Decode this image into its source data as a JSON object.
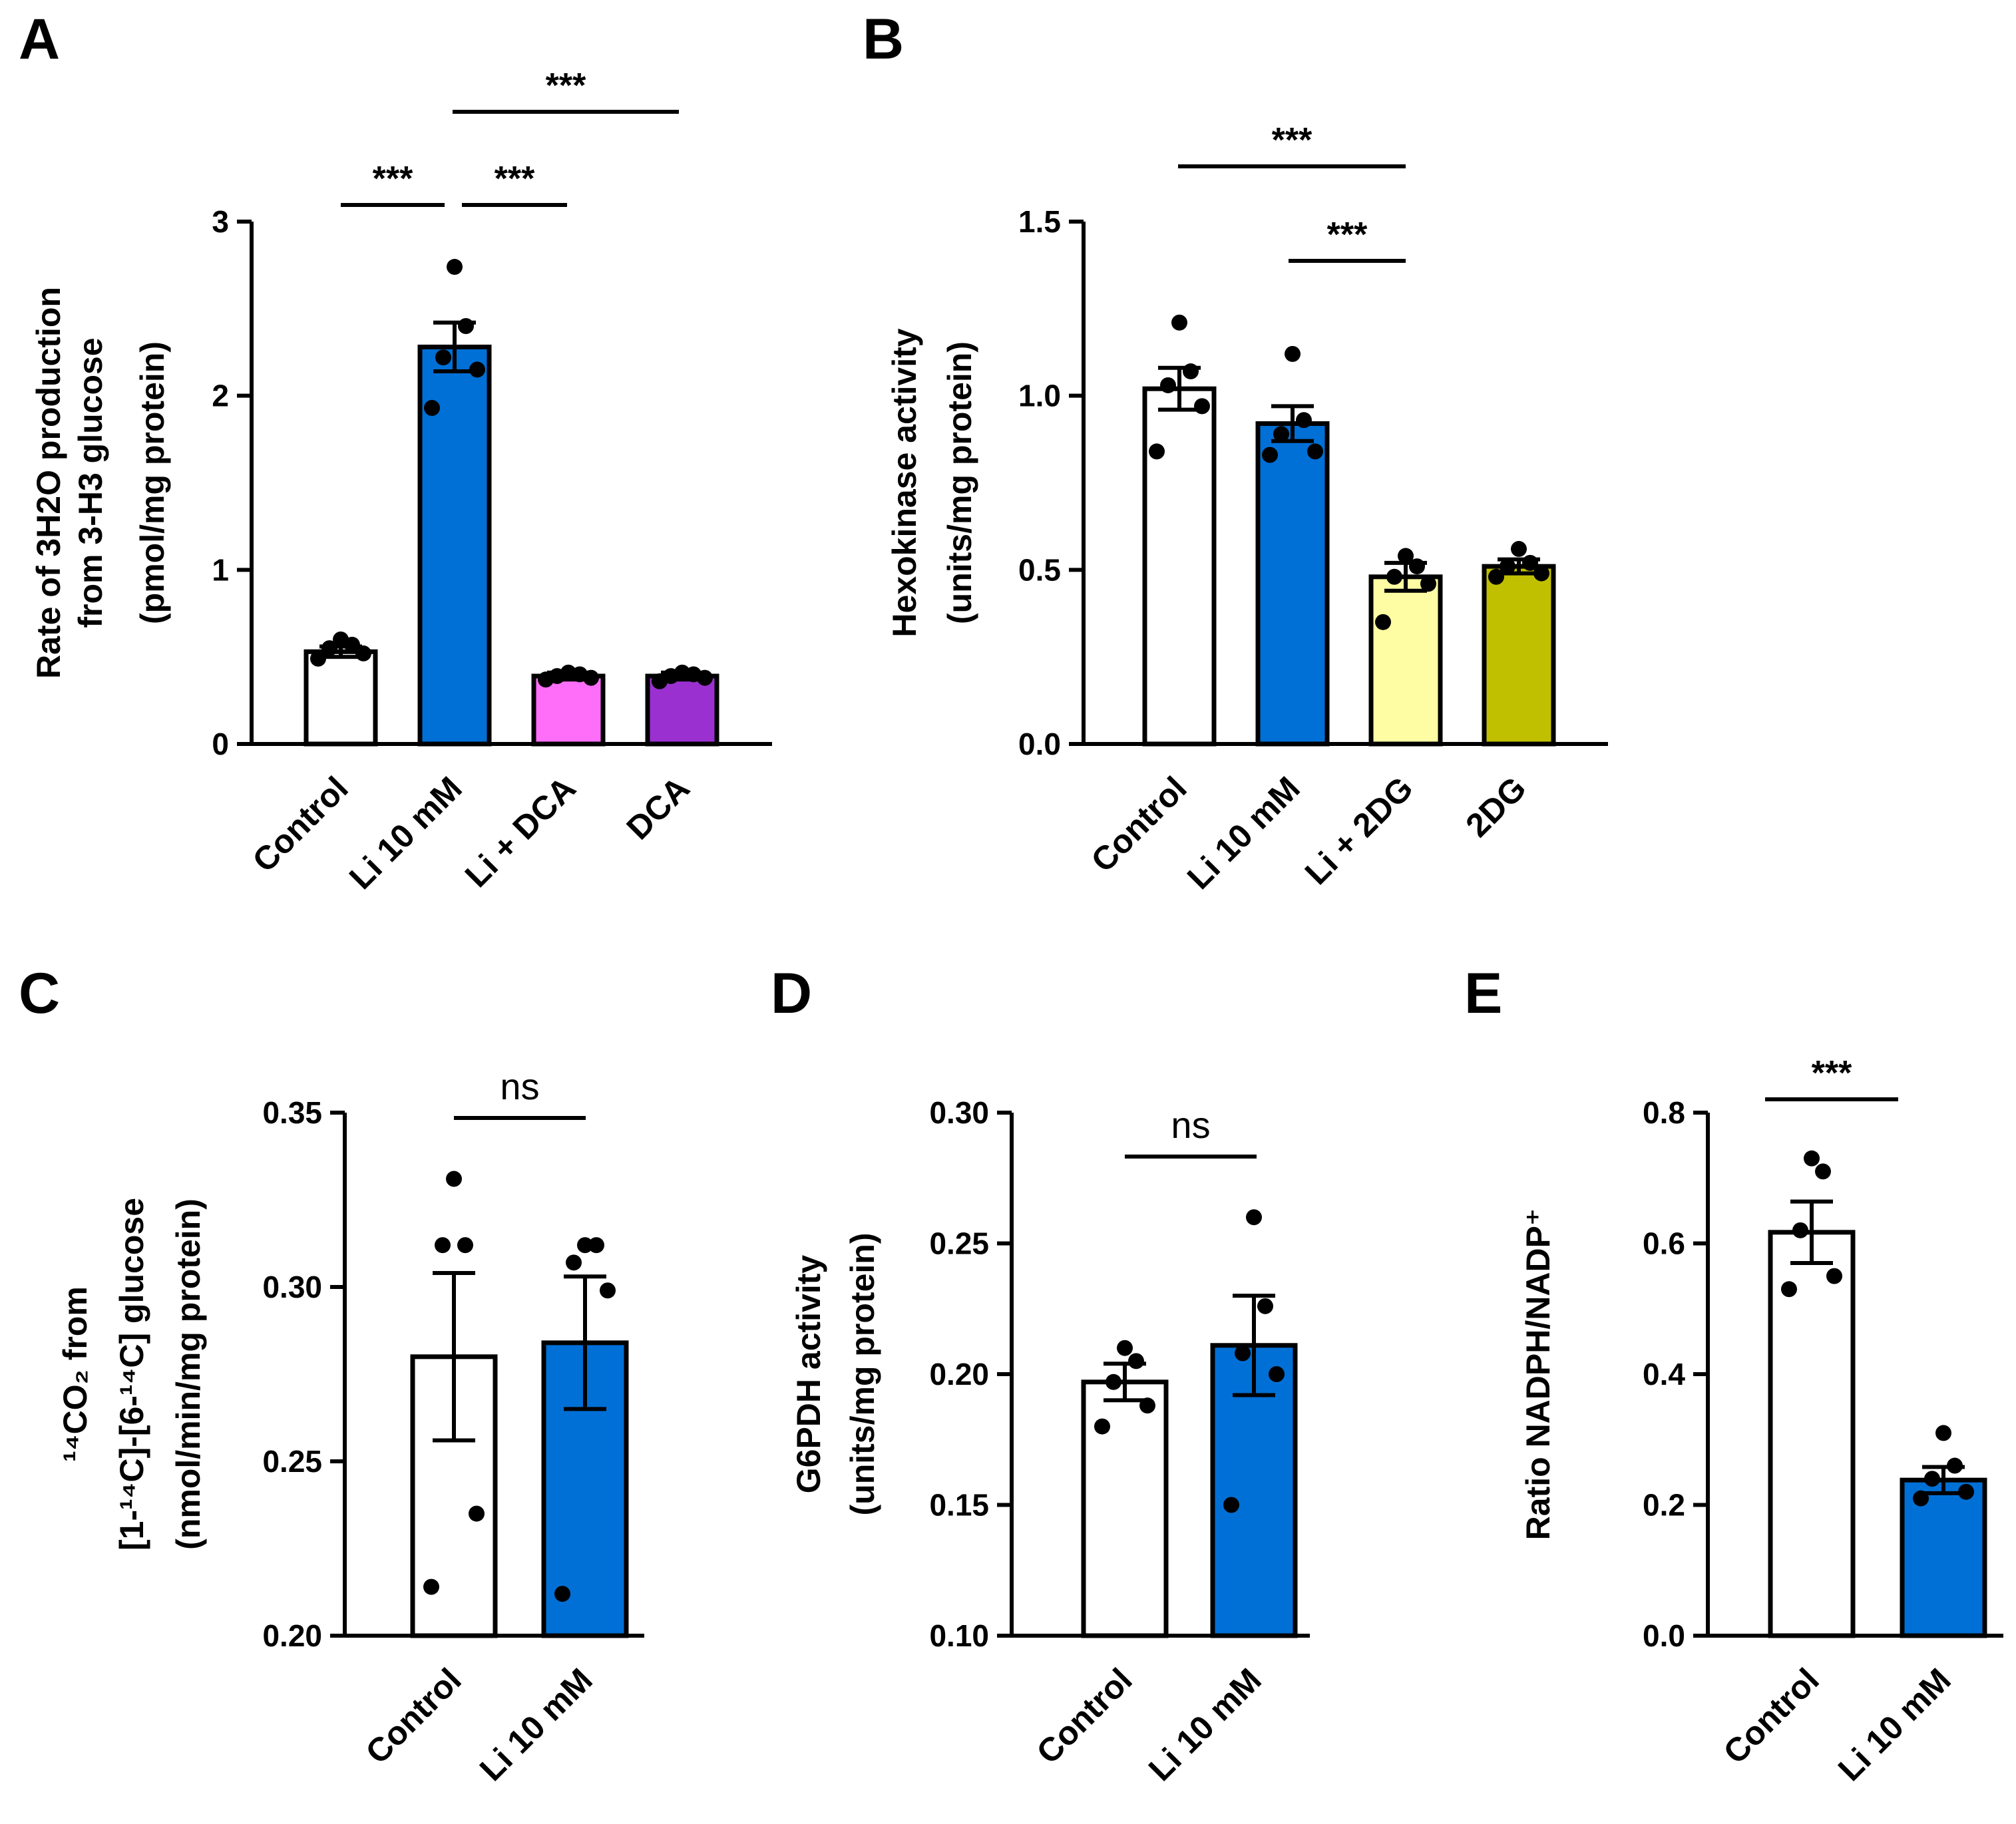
{
  "chart_data": [
    {
      "panel": "A",
      "type": "bar",
      "categories": [
        "Control",
        "Li 10 mM",
        "Li + DCA",
        "DCA"
      ],
      "values": [
        0.53,
        2.28,
        0.39,
        0.39
      ],
      "sem": [
        0.03,
        0.14,
        0.02,
        0.02
      ],
      "colors": [
        "#ffffff",
        "#0070d6",
        "#ff6ef9",
        "#9b30d0"
      ],
      "points": [
        [
          0.49,
          0.52,
          0.55,
          0.57,
          0.6
        ],
        [
          1.93,
          2.15,
          2.22,
          2.4,
          2.74
        ],
        [
          0.37,
          0.38,
          0.39,
          0.4,
          0.41
        ],
        [
          0.36,
          0.38,
          0.39,
          0.4,
          0.41
        ]
      ],
      "ylabel_lines": [
        "Rate of 3H2O production",
        "from 3-H3 glucose",
        "(pmol/mg protein)"
      ],
      "ylim": [
        0,
        3
      ],
      "yticks": [
        0,
        1,
        2,
        3
      ],
      "ytick_labels": [
        "0",
        "1",
        "2",
        "3"
      ],
      "significance": [
        {
          "from": 0,
          "to": 1,
          "label": "***",
          "level": 3.17
        },
        {
          "from": 1,
          "to": 2,
          "label": "***",
          "level": 3.17
        },
        {
          "from": 1,
          "to": 3,
          "label": "***",
          "level": 3.65
        }
      ]
    },
    {
      "panel": "B",
      "type": "bar",
      "categories": [
        "Control",
        "Li 10 mM",
        "Li + 2DG",
        "2DG"
      ],
      "values": [
        1.02,
        0.92,
        0.48,
        0.51
      ],
      "sem": [
        0.06,
        0.05,
        0.04,
        0.02
      ],
      "colors": [
        "#ffffff",
        "#0070d6",
        "#fffda3",
        "#c1c000"
      ],
      "points": [
        [
          0.84,
          0.97,
          1.03,
          1.07,
          1.21
        ],
        [
          0.83,
          0.84,
          0.89,
          0.93,
          1.12
        ],
        [
          0.35,
          0.46,
          0.48,
          0.51,
          0.54
        ],
        [
          0.48,
          0.49,
          0.51,
          0.52,
          0.56
        ]
      ],
      "ylabel_lines": [
        "Hexokinase activity",
        "(units/mg protein)"
      ],
      "ylim": [
        0,
        1.5
      ],
      "yticks": [
        0,
        0.5,
        1.0,
        1.5
      ],
      "ytick_labels": [
        "0.0",
        "0.5",
        "1.0",
        "1.5"
      ],
      "significance": [
        {
          "from": 1,
          "to": 2,
          "label": "***",
          "level": 1.39
        },
        {
          "from": 0,
          "to": 2,
          "label": "***",
          "level": 1.66
        }
      ]
    },
    {
      "panel": "C",
      "type": "bar",
      "categories": [
        "Control",
        "Li 10 mM"
      ],
      "values": [
        0.28,
        0.284
      ],
      "sem": [
        0.024,
        0.019
      ],
      "colors": [
        "#ffffff",
        "#0070d6"
      ],
      "points": [
        [
          0.214,
          0.235,
          0.312,
          0.312,
          0.331
        ],
        [
          0.212,
          0.299,
          0.307,
          0.312,
          0.312
        ]
      ],
      "ylabel_lines": [
        "¹⁴CO₂ from",
        "[1-¹⁴C]-[6-¹⁴C] glucose",
        "(nmol/min/mg protein)"
      ],
      "ylim": [
        0.2,
        0.35
      ],
      "yticks": [
        0.2,
        0.25,
        0.3,
        0.35
      ],
      "ytick_labels": [
        "0.20",
        "0.25",
        "0.30",
        "0.35"
      ],
      "significance": [
        {
          "from": 0,
          "to": 1,
          "label": "ns",
          "level": 0.3505
        }
      ]
    },
    {
      "panel": "D",
      "type": "bar",
      "categories": [
        "Control",
        "Li 10 mM"
      ],
      "values": [
        0.197,
        0.211
      ],
      "sem": [
        0.007,
        0.019
      ],
      "colors": [
        "#ffffff",
        "#0070d6"
      ],
      "points": [
        [
          0.18,
          0.188,
          0.197,
          0.205,
          0.21
        ],
        [
          0.15,
          0.2,
          0.208,
          0.226,
          0.26
        ]
      ],
      "ylabel_lines": [
        "G6PDH activity",
        "(units/mg protein)"
      ],
      "ylim": [
        0.1,
        0.3
      ],
      "yticks": [
        0.1,
        0.15,
        0.2,
        0.25,
        0.3
      ],
      "ytick_labels": [
        "0.10",
        "0.15",
        "0.20",
        "0.25",
        "0.30"
      ],
      "significance": [
        {
          "from": 0,
          "to": 1,
          "label": "ns",
          "level": 0.2835
        }
      ]
    },
    {
      "panel": "E",
      "type": "bar",
      "categories": [
        "Control",
        "Li 10 mM"
      ],
      "values": [
        0.617,
        0.238
      ],
      "sem": [
        0.047,
        0.02
      ],
      "colors": [
        "#ffffff",
        "#0070d6"
      ],
      "points": [
        [
          0.53,
          0.55,
          0.62,
          0.71,
          0.73
        ],
        [
          0.21,
          0.22,
          0.24,
          0.26,
          0.31
        ]
      ],
      "ylabel_lines": [
        "Ratio NADPH/NADP⁺"
      ],
      "ylim": [
        0,
        0.8
      ],
      "yticks": [
        0,
        0.2,
        0.4,
        0.6,
        0.8
      ],
      "ytick_labels": [
        "0.0",
        "0.2",
        "0.4",
        "0.6",
        "0.8"
      ],
      "significance": [
        {
          "from": 0,
          "to": 1,
          "label": "***",
          "level": 0.8
        }
      ]
    }
  ]
}
